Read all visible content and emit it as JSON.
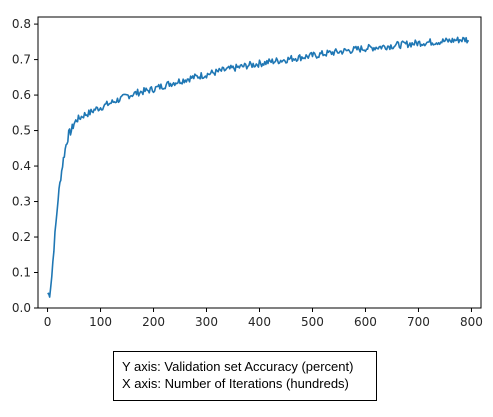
{
  "chart_data": {
    "type": "line",
    "title": "",
    "xlabel": "",
    "ylabel": "",
    "xlim": [
      -18,
      818
    ],
    "ylim": [
      0.0,
      0.82
    ],
    "xticks": [
      0,
      100,
      200,
      300,
      400,
      500,
      600,
      700,
      800
    ],
    "yticks": [
      0.0,
      0.1,
      0.2,
      0.3,
      0.4,
      0.5,
      0.6,
      0.7,
      0.8
    ],
    "ytick_labels": [
      "0.0",
      "0.1",
      "0.2",
      "0.3",
      "0.4",
      "0.5",
      "0.6",
      "0.7",
      "0.8"
    ],
    "grid": false,
    "line_color": "#1f77b4",
    "series": [
      {
        "x": [
          0,
          4,
          8,
          12,
          16,
          20,
          25,
          30,
          35,
          40,
          45,
          50,
          55,
          60,
          70,
          80,
          90,
          100,
          110,
          120,
          130,
          140,
          150,
          160,
          170,
          180,
          190,
          200,
          210,
          220,
          230,
          240,
          250,
          260,
          270,
          280,
          290,
          300,
          310,
          320,
          330,
          340,
          350,
          360,
          370,
          380,
          390,
          400,
          410,
          420,
          430,
          440,
          450,
          460,
          470,
          480,
          490,
          500,
          510,
          520,
          530,
          540,
          550,
          560,
          570,
          580,
          590,
          600,
          610,
          620,
          630,
          640,
          650,
          660,
          670,
          680,
          690,
          700,
          710,
          720,
          730,
          740,
          750,
          760,
          770,
          780,
          790,
          795
        ],
        "y": [
          0.04,
          0.04,
          0.09,
          0.17,
          0.24,
          0.31,
          0.37,
          0.42,
          0.46,
          0.49,
          0.5,
          0.52,
          0.53,
          0.535,
          0.545,
          0.55,
          0.56,
          0.565,
          0.572,
          0.578,
          0.585,
          0.59,
          0.598,
          0.602,
          0.607,
          0.61,
          0.613,
          0.617,
          0.622,
          0.627,
          0.632,
          0.636,
          0.64,
          0.644,
          0.648,
          0.651,
          0.655,
          0.658,
          0.662,
          0.665,
          0.669,
          0.672,
          0.675,
          0.678,
          0.681,
          0.684,
          0.686,
          0.689,
          0.691,
          0.694,
          0.696,
          0.698,
          0.7,
          0.703,
          0.705,
          0.707,
          0.709,
          0.711,
          0.713,
          0.716,
          0.718,
          0.72,
          0.722,
          0.724,
          0.726,
          0.728,
          0.73,
          0.732,
          0.733,
          0.735,
          0.736,
          0.738,
          0.739,
          0.741,
          0.742,
          0.744,
          0.745,
          0.747,
          0.748,
          0.749,
          0.75,
          0.751,
          0.752,
          0.753,
          0.755,
          0.756,
          0.757,
          0.752
        ]
      }
    ]
  },
  "caption": {
    "line1": "Y axis: Validation set Accuracy (percent)",
    "line2": "X axis: Number of Iterations (hundreds)"
  }
}
